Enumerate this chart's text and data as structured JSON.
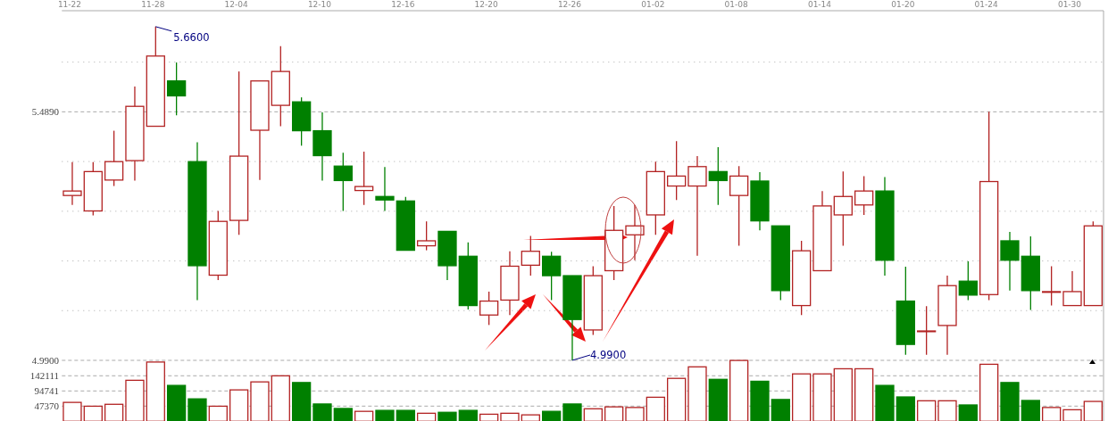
{
  "chart_data": [
    {
      "type": "candlestick",
      "categories": [
        "11-22",
        null,
        null,
        null,
        "11-28",
        null,
        null,
        null,
        "12-04",
        null,
        null,
        null,
        "12-10",
        null,
        null,
        null,
        "12-16",
        null,
        null,
        null,
        "12-20",
        null,
        null,
        null,
        "12-26",
        null,
        null,
        null,
        "01-02",
        null,
        null,
        null,
        "01-08",
        null,
        null,
        null,
        "01-14",
        null,
        null,
        null,
        "01-20",
        null,
        null,
        null,
        "01-24",
        null,
        null,
        null,
        "01-30",
        null
      ],
      "ohlc": [
        [
          5.321,
          5.388,
          5.302,
          5.33
        ],
        [
          5.29,
          5.388,
          5.281,
          5.369
        ],
        [
          5.352,
          5.451,
          5.34,
          5.389
        ],
        [
          5.391,
          5.54,
          5.351,
          5.5
        ],
        [
          5.46,
          5.66,
          5.46,
          5.601
        ],
        [
          5.551,
          5.588,
          5.482,
          5.521
        ],
        [
          5.389,
          5.428,
          5.111,
          5.18
        ],
        [
          5.161,
          5.29,
          5.151,
          5.269
        ],
        [
          5.271,
          5.57,
          5.242,
          5.4
        ],
        [
          5.452,
          5.551,
          5.352,
          5.551
        ],
        [
          5.502,
          5.621,
          5.46,
          5.57
        ],
        [
          5.509,
          5.518,
          5.421,
          5.451
        ],
        [
          5.451,
          5.488,
          5.351,
          5.401
        ],
        [
          5.38,
          5.407,
          5.29,
          5.351
        ],
        [
          5.331,
          5.409,
          5.302,
          5.339
        ],
        [
          5.319,
          5.378,
          5.29,
          5.312
        ],
        [
          5.31,
          5.318,
          5.211,
          5.211
        ],
        [
          5.22,
          5.269,
          5.211,
          5.23
        ],
        [
          5.249,
          5.249,
          5.151,
          5.18
        ],
        [
          5.199,
          5.227,
          5.092,
          5.1
        ],
        [
          5.081,
          5.128,
          5.061,
          5.109
        ],
        [
          5.111,
          5.209,
          5.081,
          5.179
        ],
        [
          5.181,
          5.24,
          5.16,
          5.209
        ],
        [
          5.199,
          5.208,
          5.111,
          5.16
        ],
        [
          5.16,
          5.16,
          4.99,
          5.072
        ],
        [
          5.051,
          5.179,
          5.041,
          5.16
        ],
        [
          5.17,
          5.3,
          5.151,
          5.251
        ],
        [
          5.242,
          5.302,
          5.191,
          5.26
        ],
        [
          5.282,
          5.389,
          5.242,
          5.369
        ],
        [
          5.34,
          5.43,
          5.312,
          5.36
        ],
        [
          5.34,
          5.4,
          5.2,
          5.379
        ],
        [
          5.369,
          5.418,
          5.302,
          5.351
        ],
        [
          5.321,
          5.38,
          5.22,
          5.36
        ],
        [
          5.35,
          5.368,
          5.251,
          5.27
        ],
        [
          5.26,
          5.26,
          5.111,
          5.13
        ],
        [
          5.1,
          5.23,
          5.081,
          5.21
        ],
        [
          5.17,
          5.33,
          5.17,
          5.3
        ],
        [
          5.282,
          5.369,
          5.22,
          5.319
        ],
        [
          5.302,
          5.36,
          5.282,
          5.33
        ],
        [
          5.33,
          5.358,
          5.16,
          5.191
        ],
        [
          5.109,
          5.178,
          5.001,
          5.022
        ],
        [
          5.049,
          5.099,
          5.001,
          5.049
        ],
        [
          5.06,
          5.16,
          5.001,
          5.14
        ],
        [
          5.149,
          5.189,
          5.111,
          5.121
        ],
        [
          5.122,
          5.489,
          5.111,
          5.349
        ],
        [
          5.23,
          5.248,
          5.13,
          5.191
        ],
        [
          5.199,
          5.239,
          5.091,
          5.13
        ],
        [
          5.128,
          5.179,
          5.1,
          5.128
        ],
        [
          5.1,
          5.169,
          5.1,
          5.128
        ],
        [
          5.1,
          5.269,
          5.1,
          5.26
        ]
      ],
      "colors": [
        "#b22222",
        "#b22222",
        "#b22222",
        "#b22222",
        "#b22222",
        "#008000",
        "#008000",
        "#b22222",
        "#b22222",
        "#b22222",
        "#b22222",
        "#008000",
        "#008000",
        "#008000",
        "#b22222",
        "#008000",
        "#008000",
        "#b22222",
        "#008000",
        "#008000",
        "#b22222",
        "#b22222",
        "#b22222",
        "#008000",
        "#008000",
        "#b22222",
        "#b22222",
        "#b22222",
        "#b22222",
        "#b22222",
        "#b22222",
        "#008000",
        "#b22222",
        "#008000",
        "#008000",
        "#b22222",
        "#b22222",
        "#b22222",
        "#b22222",
        "#008000",
        "#008000",
        "#b22222",
        "#b22222",
        "#008000",
        "#b22222",
        "#008000",
        "#008000",
        "#b22222",
        "#b22222",
        "#b22222"
      ],
      "ylim": [
        4.99,
        5.692
      ],
      "yticks": [
        {
          "value": 4.99,
          "label": "4.9900"
        },
        {
          "value": 5.0898,
          "label": null
        },
        {
          "value": 5.1896,
          "label": null
        },
        {
          "value": 5.2894,
          "label": null
        },
        {
          "value": 5.3892,
          "label": null
        },
        {
          "value": 5.489,
          "label": "5.4890"
        },
        {
          "value": 5.5888,
          "label": null
        }
      ],
      "grid": "y",
      "annotations": [
        {
          "text": "5.6600",
          "x": "11-28",
          "y": 5.66
        },
        {
          "text": "4.9900",
          "x": "12-26",
          "y": 4.99
        }
      ]
    },
    {
      "type": "bar",
      "values": [
        59000,
        47000,
        53000,
        128000,
        185000,
        112000,
        70000,
        47000,
        98000,
        123000,
        142000,
        121000,
        54000,
        40000,
        31000,
        34000,
        34000,
        25000,
        28000,
        34000,
        22000,
        25000,
        20000,
        31000,
        54000,
        39000,
        45000,
        43000,
        75000,
        134000,
        170000,
        131000,
        190000,
        125000,
        68000,
        148000,
        148000,
        164000,
        164000,
        112000,
        76000,
        64000,
        64000,
        51000,
        178000,
        121000,
        65000,
        43000,
        36000,
        62000
      ],
      "colors": [
        "#b22222",
        "#b22222",
        "#b22222",
        "#b22222",
        "#b22222",
        "#008000",
        "#008000",
        "#b22222",
        "#b22222",
        "#b22222",
        "#b22222",
        "#008000",
        "#008000",
        "#008000",
        "#b22222",
        "#008000",
        "#008000",
        "#b22222",
        "#008000",
        "#008000",
        "#b22222",
        "#b22222",
        "#b22222",
        "#008000",
        "#008000",
        "#b22222",
        "#b22222",
        "#b22222",
        "#b22222",
        "#b22222",
        "#b22222",
        "#008000",
        "#b22222",
        "#008000",
        "#008000",
        "#b22222",
        "#b22222",
        "#b22222",
        "#b22222",
        "#008000",
        "#008000",
        "#b22222",
        "#b22222",
        "#008000",
        "#b22222",
        "#008000",
        "#008000",
        "#b22222",
        "#b22222",
        "#b22222"
      ],
      "ylim": [
        0,
        190300
      ],
      "yticks": [
        47370,
        94741,
        142111
      ],
      "grid": "y",
      "tick_labels": "y"
    }
  ]
}
